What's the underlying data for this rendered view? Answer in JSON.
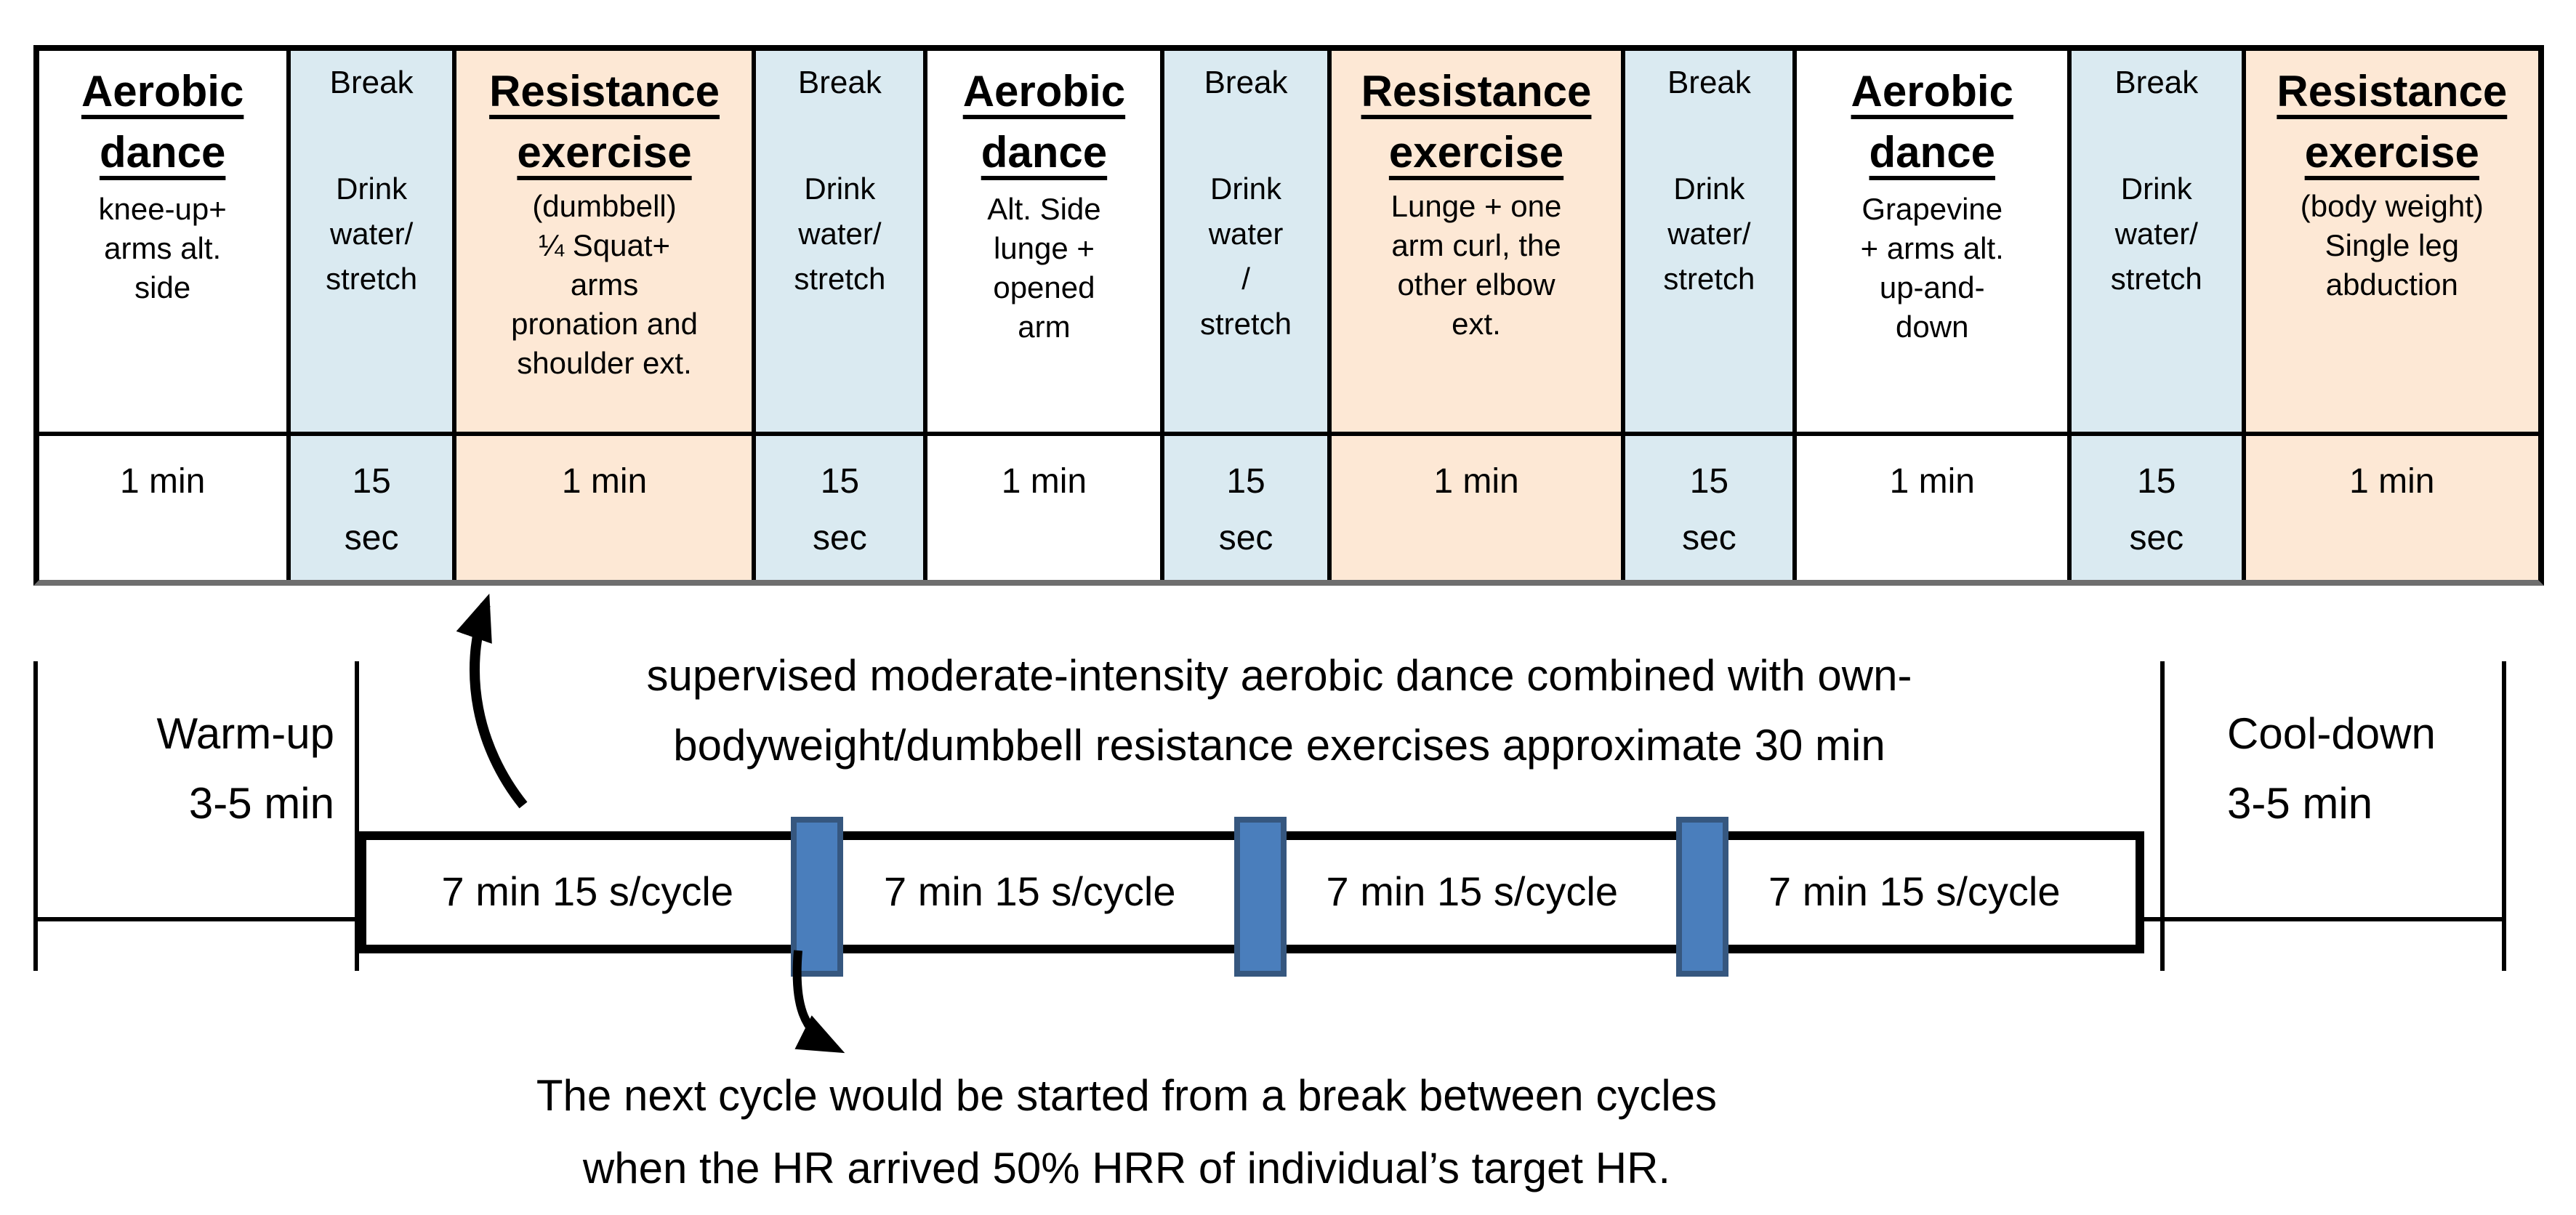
{
  "colors": {
    "break_bg": "#daeaf1",
    "resistance_bg": "#fde8d5",
    "aerobic_bg": "#ffffff",
    "separator_fill": "#4a7ebc",
    "separator_border": "#36577f",
    "line_color": "#000000"
  },
  "table": {
    "widths_pct": [
      9.87,
      6.68,
      11.96,
      6.88,
      9.47,
      6.68,
      11.76,
      6.88,
      10.97,
      6.98,
      11.87
    ],
    "columns": [
      {
        "kind": "aerobic",
        "title_lines": [
          "Aerobic",
          "dance"
        ],
        "desc_lines": [
          "knee-up+",
          "arms alt.",
          "side"
        ],
        "duration_lines": [
          "1 min"
        ]
      },
      {
        "kind": "break",
        "title_lines": [
          "Break"
        ],
        "desc_lines": [
          "Drink",
          "water/",
          "stretch"
        ],
        "duration_lines": [
          "15",
          "sec"
        ]
      },
      {
        "kind": "resistance",
        "title_lines": [
          "Resistance",
          "exercise"
        ],
        "desc_lines": [
          "(dumbbell)",
          "¼ Squat+",
          "arms",
          "pronation and",
          "shoulder ext."
        ],
        "duration_lines": [
          "1 min"
        ]
      },
      {
        "kind": "break",
        "title_lines": [
          "Break"
        ],
        "desc_lines": [
          "Drink",
          "water/",
          "stretch"
        ],
        "duration_lines": [
          "15",
          "sec"
        ]
      },
      {
        "kind": "aerobic",
        "title_lines": [
          "Aerobic",
          "dance"
        ],
        "desc_lines": [
          "Alt. Side",
          "lunge +",
          "opened",
          "arm"
        ],
        "duration_lines": [
          "1 min"
        ]
      },
      {
        "kind": "break",
        "title_lines": [
          "Break"
        ],
        "desc_lines": [
          "Drink",
          "water",
          "/",
          "stretch"
        ],
        "duration_lines": [
          "15",
          "sec"
        ]
      },
      {
        "kind": "resistance",
        "title_lines": [
          "Resistance",
          "exercise"
        ],
        "desc_lines": [
          "Lunge + one",
          "arm curl, the",
          "other elbow",
          "ext."
        ],
        "duration_lines": [
          "1 min"
        ]
      },
      {
        "kind": "break",
        "title_lines": [
          "Break"
        ],
        "desc_lines": [
          "Drink",
          "water/",
          "stretch"
        ],
        "duration_lines": [
          "15",
          "sec"
        ]
      },
      {
        "kind": "aerobic",
        "title_lines": [
          "Aerobic",
          "dance"
        ],
        "desc_lines": [
          "Grapevine",
          "+ arms alt.",
          "up-and-",
          "down"
        ],
        "duration_lines": [
          "1 min"
        ]
      },
      {
        "kind": "break",
        "title_lines": [
          "Break"
        ],
        "desc_lines": [
          "Drink",
          "water/",
          "stretch"
        ],
        "duration_lines": [
          "15",
          "sec"
        ]
      },
      {
        "kind": "resistance",
        "title_lines": [
          "Resistance",
          "exercise"
        ],
        "desc_lines": [
          "(body weight)",
          "Single leg",
          "abduction"
        ],
        "duration_lines": [
          "1 min"
        ]
      }
    ]
  },
  "timeline": {
    "warmup": {
      "lines": [
        "Warm-up",
        "3-5 min"
      ]
    },
    "cooldown": {
      "lines": [
        "Cool-down",
        "3-5 min"
      ]
    },
    "supervised": {
      "lines": [
        "supervised moderate-intensity aerobic dance combined with own-",
        "bodyweight/dumbbell resistance exercises approximate 30 min"
      ]
    },
    "cycle_blocks": [
      "7 min 15 s/cycle",
      "7 min 15 s/cycle",
      "7 min 15 s/cycle",
      "7 min 15 s/cycle"
    ],
    "annotation": {
      "lines": [
        "The next cycle would be started from a break between cycles",
        "when the HR arrived 50% HRR of individual’s target HR."
      ]
    },
    "icons": {
      "up_arrow": "curved-up-arrow-icon",
      "down_arrow": "curved-down-arrow-icon"
    }
  }
}
